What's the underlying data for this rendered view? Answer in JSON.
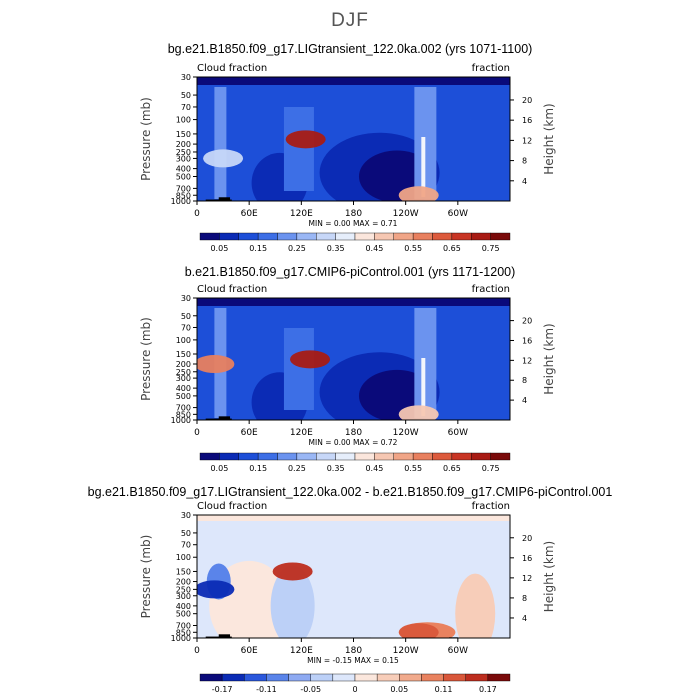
{
  "season_title": "DJF",
  "panels": [
    {
      "title": "bg.e21.B1850.f09_g17.LIGtransient_122.0ka.002 (yrs 1071-1100)",
      "left_label": "Cloud fraction",
      "right_label": "fraction",
      "stats": {
        "min_label": "MIN =",
        "min": "0.00",
        "max_label": "MAX =",
        "max": "0.71"
      }
    },
    {
      "title": "b.e21.B1850.f09_g17.CMIP6-piControl.001 (yrs 1171-1200)",
      "left_label": "Cloud fraction",
      "right_label": "fraction",
      "stats": {
        "min_label": "MIN =",
        "min": "0.00",
        "max_label": "MAX =",
        "max": "0.72"
      }
    },
    {
      "title": "bg.e21.B1850.f09_g17.LIGtransient_122.0ka.002 - b.e21.B1850.f09_g17.CMIP6-piControl.001",
      "left_label": "Cloud fraction",
      "right_label": "fraction",
      "stats": {
        "min_label": "MIN =",
        "min": "-0.15",
        "max_label": "MAX =",
        "max": "0.15"
      }
    }
  ],
  "chart_data": [
    {
      "type": "heatmap",
      "title": "bg.e21.B1850.f09_g17.LIGtransient_122.0ka.002 (yrs 1071-1100)",
      "xlabel": "",
      "ylabel": "Pressure (mb)",
      "y2label": "Height (km)",
      "x_ticks": [
        "0",
        "60E",
        "120E",
        "180",
        "120W",
        "60W"
      ],
      "x_tick_lon": [
        0,
        60,
        120,
        180,
        240,
        300
      ],
      "xlim": [
        0,
        360
      ],
      "y_ticks": [
        30,
        50,
        70,
        100,
        150,
        200,
        250,
        300,
        400,
        500,
        700,
        850,
        1000
      ],
      "ylim": [
        1000,
        30
      ],
      "y_scale": "log",
      "y2_ticks": [
        4,
        8,
        12,
        16,
        20
      ],
      "min": 0.0,
      "max": 0.71,
      "colorbar_labels": [
        "0.05",
        "0.15",
        "0.25",
        "0.35",
        "0.45",
        "0.55",
        "0.65",
        "0.75"
      ],
      "colorbar_levels": [
        0,
        0.05,
        0.1,
        0.15,
        0.2,
        0.25,
        0.3,
        0.35,
        0.4,
        0.45,
        0.5,
        0.55,
        0.6,
        0.65,
        0.7,
        0.75,
        0.8
      ],
      "features": [
        {
          "name": "upper-tropospheric maximum",
          "lon": 125,
          "pressure": 175,
          "value": 0.7
        },
        {
          "name": "boundary layer cloud",
          "lon": 255,
          "pressure": 850,
          "value": 0.5
        },
        {
          "name": "column cloud",
          "lon": 30,
          "pressure": 300,
          "value": 0.3
        }
      ]
    },
    {
      "type": "heatmap",
      "title": "b.e21.B1850.f09_g17.CMIP6-piControl.001 (yrs 1171-1200)",
      "xlabel": "",
      "ylabel": "Pressure (mb)",
      "y2label": "Height (km)",
      "x_ticks": [
        "0",
        "60E",
        "120E",
        "180",
        "120W",
        "60W"
      ],
      "x_tick_lon": [
        0,
        60,
        120,
        180,
        240,
        300
      ],
      "xlim": [
        0,
        360
      ],
      "y_ticks": [
        30,
        50,
        70,
        100,
        150,
        200,
        250,
        300,
        400,
        500,
        700,
        850,
        1000
      ],
      "ylim": [
        1000,
        30
      ],
      "y_scale": "log",
      "y2_ticks": [
        4,
        8,
        12,
        16,
        20
      ],
      "min": 0.0,
      "max": 0.72,
      "colorbar_labels": [
        "0.05",
        "0.15",
        "0.25",
        "0.35",
        "0.45",
        "0.55",
        "0.65",
        "0.75"
      ],
      "colorbar_levels": [
        0,
        0.05,
        0.1,
        0.15,
        0.2,
        0.25,
        0.3,
        0.35,
        0.4,
        0.45,
        0.5,
        0.55,
        0.6,
        0.65,
        0.7,
        0.75,
        0.8
      ],
      "features": [
        {
          "name": "upper-tropospheric maximum",
          "lon": 130,
          "pressure": 175,
          "value": 0.72
        },
        {
          "name": "boundary layer cloud",
          "lon": 255,
          "pressure": 850,
          "value": 0.45
        },
        {
          "name": "column cloud",
          "lon": 20,
          "pressure": 200,
          "value": 0.55
        }
      ]
    },
    {
      "type": "heatmap",
      "title": "bg.e21.B1850.f09_g17.LIGtransient_122.0ka.002 - b.e21.B1850.f09_g17.CMIP6-piControl.001",
      "xlabel": "",
      "ylabel": "Pressure (mb)",
      "y2label": "Height (km)",
      "x_ticks": [
        "0",
        "60E",
        "120E",
        "180",
        "120W",
        "60W"
      ],
      "x_tick_lon": [
        0,
        60,
        120,
        180,
        240,
        300
      ],
      "xlim": [
        0,
        360
      ],
      "y_ticks": [
        30,
        50,
        70,
        100,
        150,
        200,
        250,
        300,
        400,
        500,
        700,
        850,
        1000
      ],
      "ylim": [
        1000,
        30
      ],
      "y_scale": "log",
      "y2_ticks": [
        4,
        8,
        12,
        16,
        20
      ],
      "min": -0.15,
      "max": 0.15,
      "colorbar_labels": [
        "-0.17",
        "-0.11",
        "-0.05",
        "0",
        "0.05",
        "0.11",
        "0.17"
      ],
      "colorbar_levels": [
        -0.2,
        -0.17,
        -0.14,
        -0.11,
        -0.08,
        -0.05,
        -0.02,
        0,
        0.02,
        0.05,
        0.08,
        0.11,
        0.14,
        0.17,
        0.2
      ],
      "features": [
        {
          "name": "positive anomaly",
          "lon": 110,
          "pressure": 150,
          "value": 0.15
        },
        {
          "name": "negative anomaly",
          "lon": 20,
          "pressure": 250,
          "value": -0.15
        },
        {
          "name": "positive anomaly",
          "lon": 255,
          "pressure": 850,
          "value": 0.12
        }
      ]
    }
  ]
}
